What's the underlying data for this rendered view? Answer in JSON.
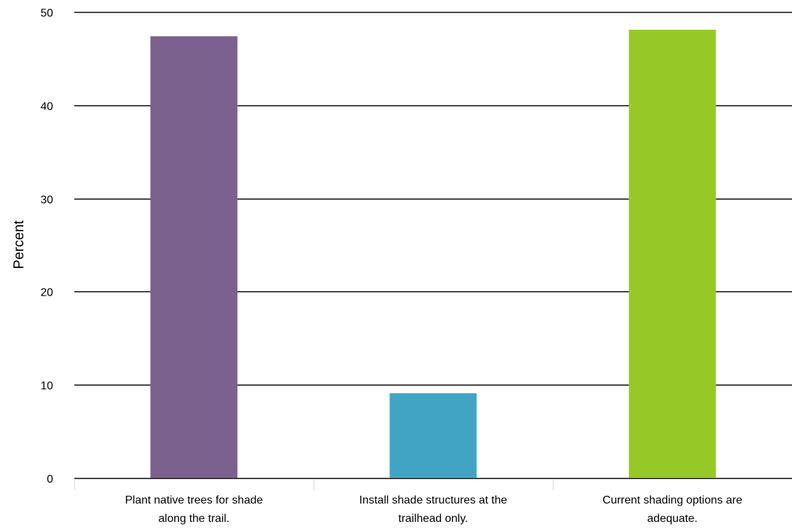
{
  "chart_data": {
    "type": "bar",
    "title": "",
    "xlabel": "",
    "ylabel": "Percent",
    "ylim": [
      0,
      50
    ],
    "yticks": [
      0,
      10,
      20,
      30,
      40,
      50
    ],
    "grid": true,
    "legend": "none",
    "categories": [
      [
        "Plant native trees for shade",
        "along the trail."
      ],
      [
        "Install shade structures at the",
        "trailhead only."
      ],
      [
        "Current shading options are",
        "adequate."
      ]
    ],
    "values": [
      47.4,
      9.1,
      48.1
    ],
    "colors": [
      "#7b618e",
      "#42a4c3",
      "#96c928"
    ]
  }
}
